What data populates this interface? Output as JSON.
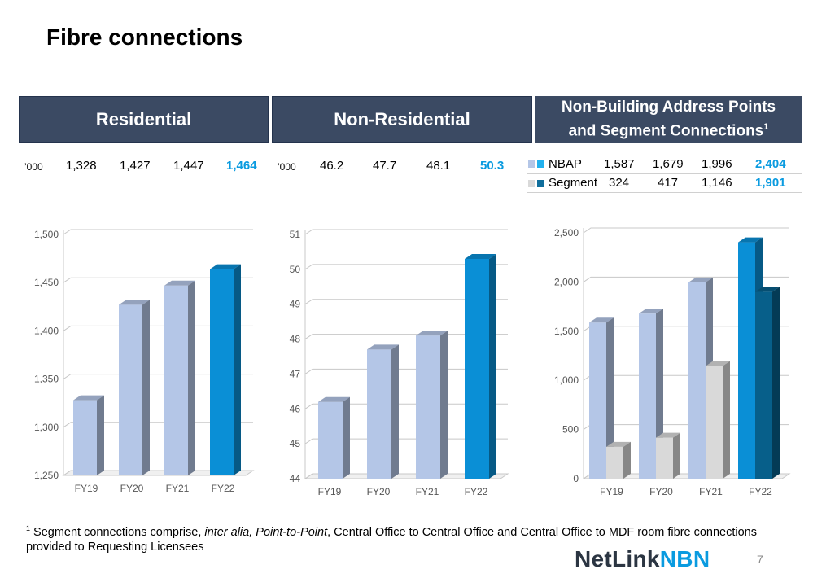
{
  "title": "Fibre connections",
  "headers": {
    "residential": "Residential",
    "non_residential": "Non-Residential",
    "nbap_line1": "Non-Building Address Points",
    "nbap_line2": "and Segment Connections",
    "nbap_sup": "1"
  },
  "residential_table": {
    "unit": "’000",
    "values": [
      "1,328",
      "1,427",
      "1,447",
      "1,464"
    ]
  },
  "non_residential_table": {
    "unit": "’000",
    "values": [
      "46.2",
      "47.7",
      "48.1",
      "50.3"
    ]
  },
  "nbap_table": {
    "rows": [
      {
        "label": "NBAP",
        "values": [
          "1,587",
          "1,679",
          "1,996",
          "2,404"
        ]
      },
      {
        "label": "Segment",
        "values": [
          "324",
          "417",
          "1,146",
          "1,901"
        ]
      }
    ]
  },
  "colors": {
    "header_bg": "#3b4a63",
    "highlight": "#0a9be0",
    "bar_light": "#b4c6e7",
    "bar_highlight": "#0a8fd6",
    "nbap_legend": "#22b1ee",
    "segment_legend": "#0f6e9c",
    "segment_light": "#d9d9d9",
    "segment_highlight": "#075f8a"
  },
  "chart_data": [
    {
      "type": "bar",
      "categories": [
        "FY19",
        "FY20",
        "FY21",
        "FY22"
      ],
      "values": [
        1328,
        1427,
        1447,
        1464
      ],
      "ylim": [
        1250,
        1500
      ],
      "yticks": [
        1250,
        1300,
        1350,
        1400,
        1450,
        1500
      ],
      "ytick_labels": [
        "1,250",
        "1,300",
        "1,350",
        "1,400",
        "1,450",
        "1,500"
      ],
      "grid": true
    },
    {
      "type": "bar",
      "categories": [
        "FY19",
        "FY20",
        "FY21",
        "FY22"
      ],
      "values": [
        46.2,
        47.7,
        48.1,
        50.3
      ],
      "ylim": [
        44,
        51
      ],
      "yticks": [
        44,
        45,
        46,
        47,
        48,
        49,
        50,
        51
      ],
      "ytick_labels": [
        "44",
        "45",
        "46",
        "47",
        "48",
        "49",
        "50",
        "51"
      ],
      "grid": true
    },
    {
      "type": "bar",
      "categories": [
        "FY19",
        "FY20",
        "FY21",
        "FY22"
      ],
      "series": [
        {
          "name": "NBAP",
          "values": [
            1587,
            1679,
            1996,
            2404
          ]
        },
        {
          "name": "Segment",
          "values": [
            324,
            417,
            1146,
            1901
          ]
        }
      ],
      "ylim": [
        0,
        2500
      ],
      "yticks": [
        0,
        500,
        1000,
        1500,
        2000,
        2500
      ],
      "ytick_labels": [
        "0",
        "500",
        "1,000",
        "1,500",
        "2,000",
        "2,500"
      ],
      "grid": true
    }
  ],
  "footnote": {
    "sup": "1",
    "part1": " Segment connections comprise, ",
    "italic": "inter alia, Point-to-Point",
    "part2": ", Central Office to Central Office and Central Office to MDF room fibre connections provided to Requesting Licensees"
  },
  "logo": {
    "part1": "NetLink",
    "part2": "NBN"
  },
  "page_number": "7"
}
